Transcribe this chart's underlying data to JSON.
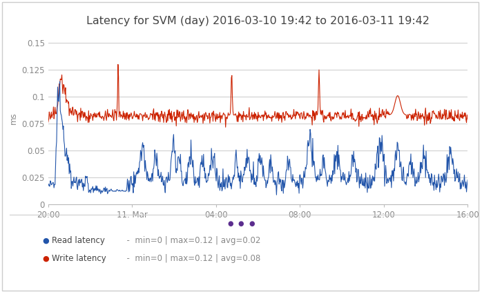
{
  "title": "Latency for SVM (day) 2016-03-10 19:42 to 2016-03-11 19:42",
  "ylabel": "ms",
  "bg_color": "#ffffff",
  "plot_bg_color": "#ffffff",
  "grid_color": "#d0d0d0",
  "read_color": "#2255aa",
  "write_color": "#cc2200",
  "legend_dot_color": "#5b2d8e",
  "border_color": "#cccccc",
  "xtick_labels": [
    "20:00",
    "11. Mar",
    "04:00",
    "08:00",
    "12:00",
    "16:00"
  ],
  "ytick_labels": [
    "0",
    "0.025",
    "0.05",
    "0.075",
    "0.1",
    "0.125",
    "0.15"
  ],
  "ylim": [
    0,
    0.16
  ],
  "read_legend": "Read latency",
  "write_legend": "Write latency",
  "read_stats": "  -  min=0 | max=0.12 | avg=0.02",
  "write_stats": "  -  min=0 | max=0.12 | avg=0.08",
  "title_fontsize": 11.5,
  "axis_fontsize": 8.5,
  "legend_fontsize": 8.5,
  "tick_color": "#888888",
  "text_color": "#444444"
}
